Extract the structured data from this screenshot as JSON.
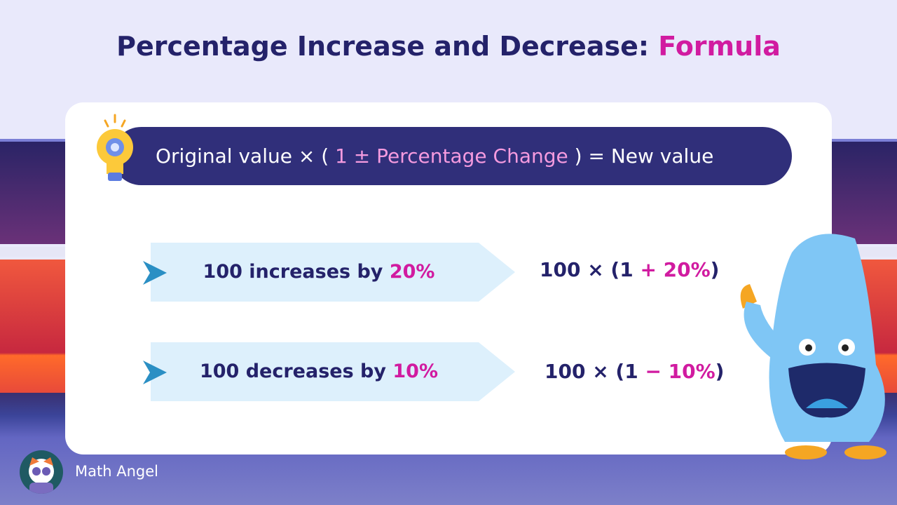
{
  "title": {
    "main": "Percentage Increase and Decrease: ",
    "highlight": "Formula"
  },
  "formula": {
    "part1": "Original value × ( ",
    "part2": "1 ± Percentage Change",
    "part3": " ) = New value"
  },
  "examples": [
    {
      "text": "100 increases by ",
      "pct": "20%",
      "expr_a": "100 × (1 ",
      "expr_b": "+ 20%",
      "expr_c": ")"
    },
    {
      "text": "100 decreases by ",
      "pct": "10%",
      "expr_a": "100 × (1 ",
      "expr_b": "− 10%",
      "expr_c": ")"
    }
  ],
  "brand": {
    "name": "Math Angel"
  },
  "colors": {
    "navy": "#24226a",
    "pink": "#d11ba0",
    "banner": "#302f7a"
  }
}
